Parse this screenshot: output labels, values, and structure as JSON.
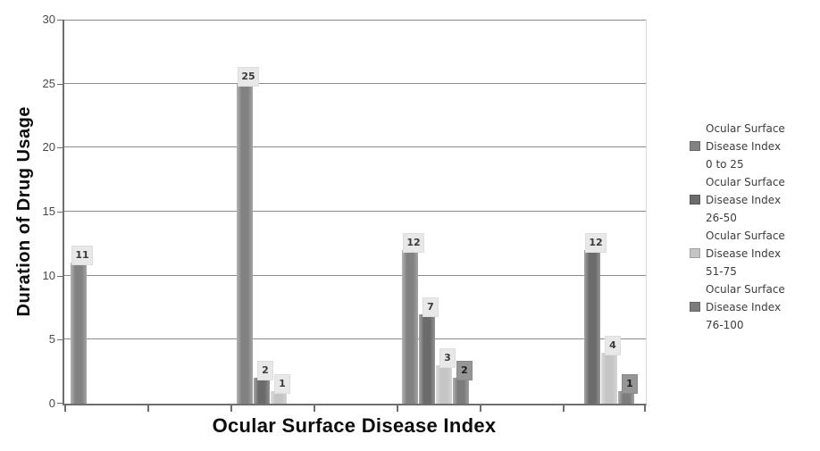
{
  "chart_data": {
    "type": "bar",
    "title": "",
    "xlabel": "Ocular Surface Disease Index",
    "ylabel": "Duration of Drug Usage",
    "ylim": [
      0,
      30
    ],
    "ytick_step": 5,
    "ytick_labels_top_to_bottom": [
      "30",
      "25",
      "20",
      "15",
      "10",
      "5",
      "0"
    ],
    "categories": [
      "",
      "",
      "",
      ""
    ],
    "grid": true,
    "data_labels": true,
    "legend_position": "right",
    "series": [
      {
        "name": "Ocular Surface Disease Index 0 to 25",
        "color": "#828282",
        "values": [
          11,
          25,
          12,
          0
        ]
      },
      {
        "name": "Ocular Surface Disease Index 26-50",
        "color": "#6b6b6b",
        "values": [
          0,
          2,
          7,
          12
        ]
      },
      {
        "name": "Ocular Surface Disease Index 51-75",
        "color": "#c5c5c5",
        "values": [
          0,
          1,
          3,
          4
        ]
      },
      {
        "name": "Ocular Surface Disease Index 76-100",
        "color": "#7c7c7c",
        "values": [
          0,
          0,
          2,
          1
        ]
      }
    ]
  },
  "legend": {
    "entries": [
      {
        "lines": [
          "Ocular Surface",
          "Disease Index",
          "0 to 25"
        ],
        "color": "#828282"
      },
      {
        "lines": [
          "Ocular Surface",
          "Disease Index",
          "26-50"
        ],
        "color": "#6b6b6b"
      },
      {
        "lines": [
          "Ocular Surface",
          "Disease Index",
          "51-75"
        ],
        "color": "#c5c5c5"
      },
      {
        "lines": [
          "Ocular Surface",
          "Disease Index",
          "76-100"
        ],
        "color": "#7c7c7c"
      }
    ]
  },
  "colors": {
    "gridline": "#8c8c8c",
    "axis": "#6e6e6e",
    "data_label_bg": "#e8e8e8",
    "data_label_bg_series4": "#969696"
  }
}
